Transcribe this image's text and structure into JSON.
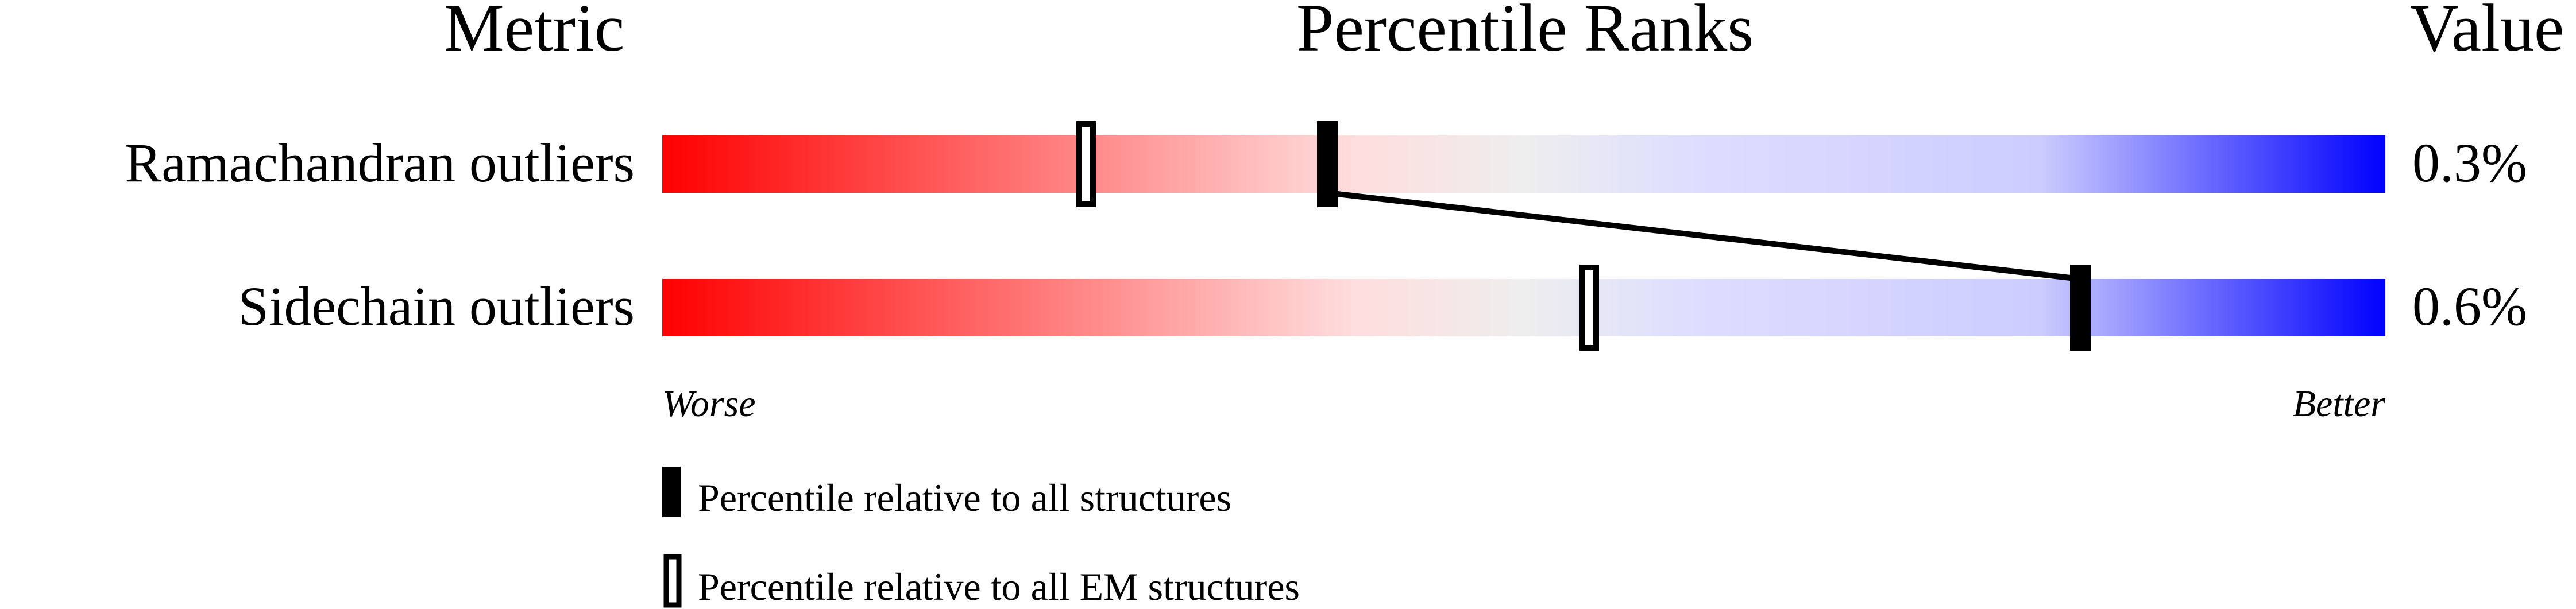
{
  "chart_data": {
    "type": "percentile-bars",
    "headers": {
      "metric": "Metric",
      "ranks": "Percentile Ranks",
      "value": "Value"
    },
    "xlim": [
      0,
      100
    ],
    "axis_labels": {
      "left": "Worse",
      "right": "Better"
    },
    "gradient_colors": [
      "#ff0000",
      "#ffdddd",
      "#eeeeee",
      "#ddddff",
      "#0000ff"
    ],
    "metrics": [
      {
        "name": "Ramachandran outliers",
        "value": "0.3%",
        "percentile_all": 38.6,
        "percentile_em": 24.6
      },
      {
        "name": "Sidechain outliers",
        "value": "0.6%",
        "percentile_all": 82.3,
        "percentile_em": 53.8
      }
    ],
    "legend": [
      {
        "marker": "filled",
        "label": "Percentile relative to all structures"
      },
      {
        "marker": "hollow",
        "label": "Percentile relative to all EM structures"
      }
    ]
  }
}
